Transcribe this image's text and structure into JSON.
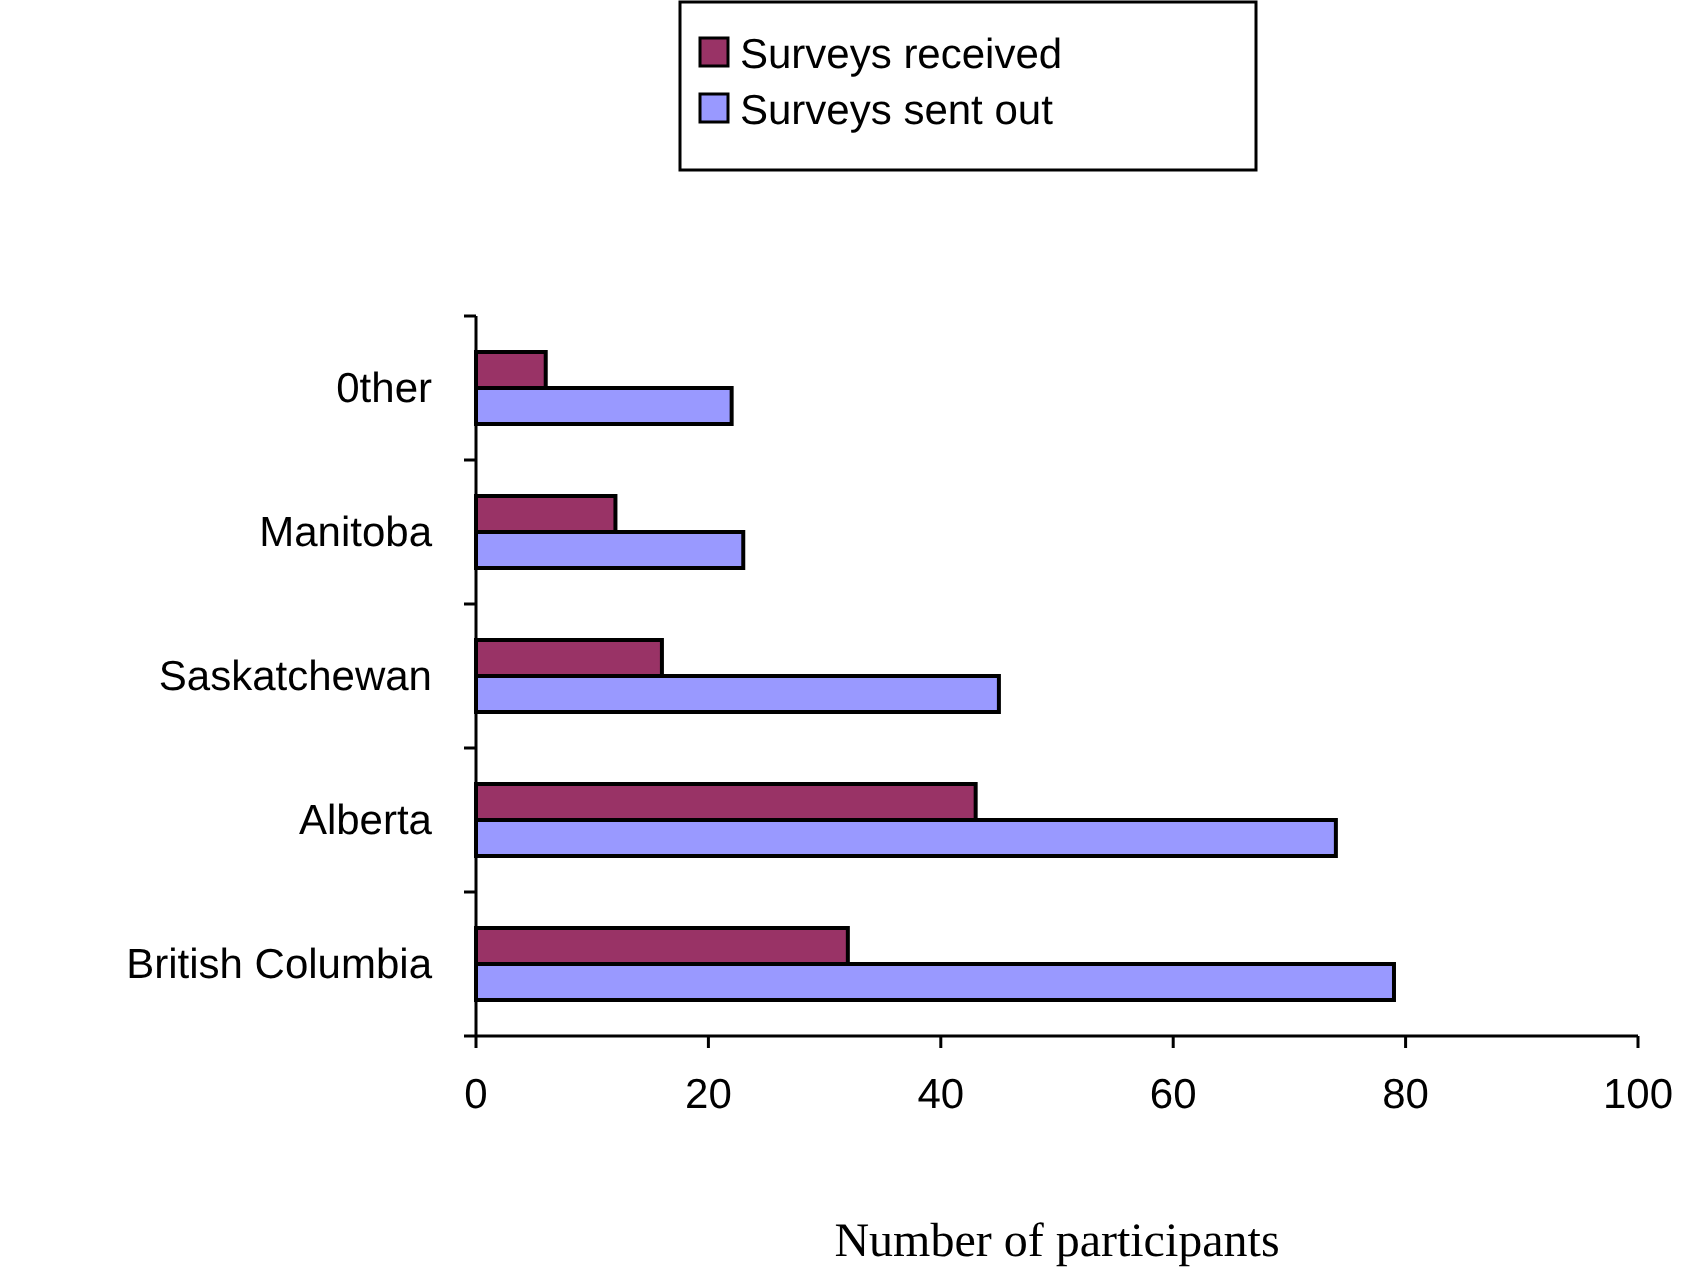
{
  "chart_data": {
    "type": "bar",
    "orientation": "horizontal",
    "xlabel": "Number of participants",
    "categories": [
      "0ther",
      "Manitoba",
      "Saskatchewan",
      "Alberta",
      "British Columbia"
    ],
    "series": [
      {
        "name": "Surveys received",
        "color": "#993366",
        "values": [
          6,
          12,
          16,
          43,
          32
        ]
      },
      {
        "name": "Surveys sent out",
        "color": "#9999ff",
        "values": [
          22,
          23,
          45,
          74,
          79
        ]
      }
    ],
    "xlim": [
      0,
      100
    ],
    "xticks": [
      0,
      20,
      40,
      60,
      80,
      100
    ],
    "legend": "top",
    "grid": false
  }
}
